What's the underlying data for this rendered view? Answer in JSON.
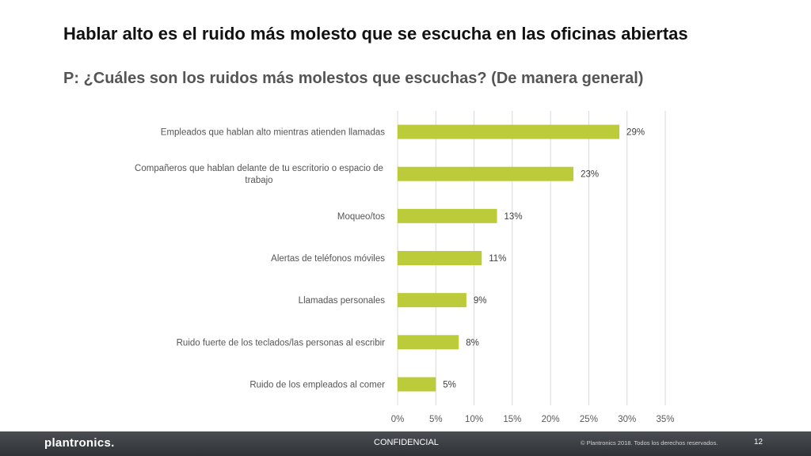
{
  "slide": {
    "title": "Hablar alto es el ruido más molesto que se escucha en las oficinas abiertas",
    "subtitle": "P: ¿Cuáles son los ruidos más molestos que escuchas? (De manera general)"
  },
  "chart_data": {
    "type": "bar",
    "orientation": "horizontal",
    "title": "",
    "xlabel": "",
    "ylabel": "",
    "xlim": [
      0,
      35
    ],
    "ticks": [
      "0%",
      "5%",
      "10%",
      "15%",
      "20%",
      "25%",
      "30%",
      "35%"
    ],
    "tick_values": [
      0,
      5,
      10,
      15,
      20,
      25,
      30,
      35
    ],
    "grid": true,
    "bar_color": "#bccb3a",
    "categories": [
      [
        "Empleados que hablan alto mientras atienden llamadas"
      ],
      [
        "Compañeros que hablan delante de tu escritorio o espacio de",
        "trabajo"
      ],
      [
        "Moqueo/tos"
      ],
      [
        "Alertas de teléfonos móviles"
      ],
      [
        "Llamadas personales"
      ],
      [
        "Ruido fuerte de los teclados/las personas al escribir"
      ],
      [
        "Ruido de los empleados al comer"
      ]
    ],
    "values": [
      29,
      23,
      13,
      11,
      9,
      8,
      5
    ],
    "data_labels": [
      "29%",
      "23%",
      "13%",
      "11%",
      "9%",
      "8%",
      "5%"
    ]
  },
  "footer": {
    "logo": "plantronics.",
    "confidential": "CONFIDENCIAL",
    "copyright": "© Plantronics 2018. Todos los derechos reservados.",
    "page_number": "12",
    "background": "#3a3d42"
  }
}
